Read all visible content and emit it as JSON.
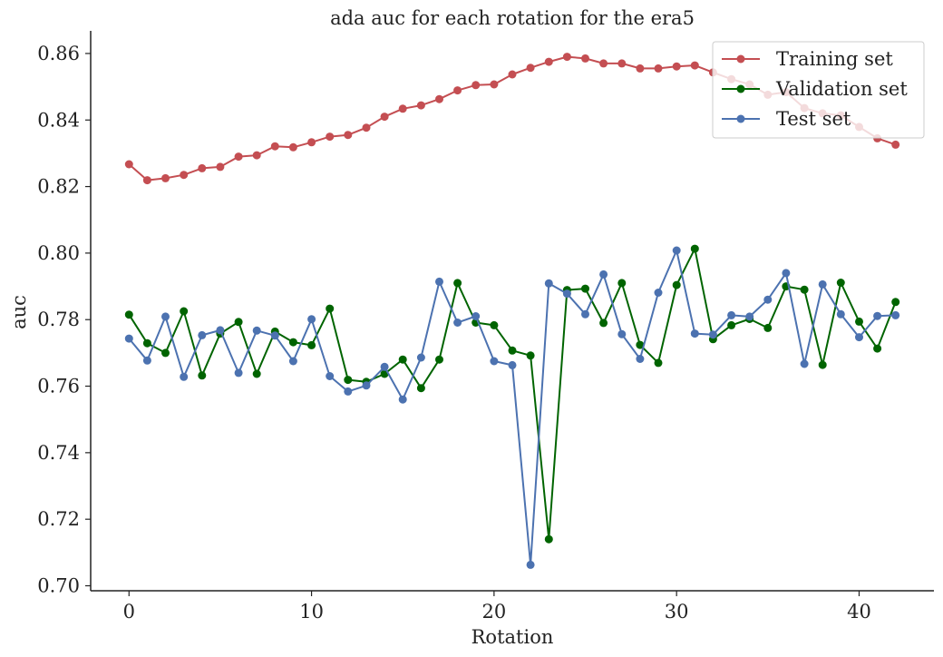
{
  "chart_data": {
    "type": "line",
    "title": "ada auc for each rotation for the era5",
    "xlabel": "Rotation",
    "ylabel": "auc",
    "xlim": [
      -2.1,
      44.1
    ],
    "ylim": [
      0.6985,
      0.8668
    ],
    "xticks": [
      0,
      10,
      20,
      30,
      40
    ],
    "xtick_labels": [
      "0",
      "10",
      "20",
      "30",
      "40"
    ],
    "yticks": [
      0.7,
      0.72,
      0.74,
      0.76,
      0.78,
      0.8,
      0.82,
      0.84,
      0.86
    ],
    "ytick_labels": [
      "0.70",
      "0.72",
      "0.74",
      "0.76",
      "0.78",
      "0.80",
      "0.82",
      "0.84",
      "0.86"
    ],
    "grid": false,
    "legend_position": "top-right",
    "x": [
      0,
      1,
      2,
      3,
      4,
      5,
      6,
      7,
      8,
      9,
      10,
      11,
      12,
      13,
      14,
      15,
      16,
      17,
      18,
      19,
      20,
      21,
      22,
      23,
      24,
      25,
      26,
      27,
      28,
      29,
      30,
      31,
      32,
      33,
      34,
      35,
      36,
      37,
      38,
      39,
      40,
      41,
      42
    ],
    "series": [
      {
        "name": "Training set",
        "color": "#c44e52",
        "values": [
          0.8267,
          0.8219,
          0.8225,
          0.8235,
          0.8255,
          0.8259,
          0.829,
          0.8294,
          0.8321,
          0.8318,
          0.8333,
          0.835,
          0.8355,
          0.8377,
          0.841,
          0.8434,
          0.8444,
          0.8463,
          0.8489,
          0.8505,
          0.8507,
          0.8537,
          0.8557,
          0.8575,
          0.859,
          0.8585,
          0.857,
          0.857,
          0.8555,
          0.8555,
          0.8561,
          0.8564,
          0.8543,
          0.8523,
          0.8507,
          0.8476,
          0.8484,
          0.8436,
          0.842,
          0.8414,
          0.8379,
          0.8345,
          0.8326
        ]
      },
      {
        "name": "Validation set",
        "color": "#006400",
        "values": [
          0.7815,
          0.7729,
          0.77,
          0.7825,
          0.7632,
          0.7758,
          0.7793,
          0.7637,
          0.7764,
          0.7732,
          0.7723,
          0.7833,
          0.7619,
          0.7613,
          0.7637,
          0.768,
          0.7594,
          0.768,
          0.791,
          0.7791,
          0.7783,
          0.7707,
          0.7692,
          0.714,
          0.7889,
          0.7893,
          0.779,
          0.791,
          0.7724,
          0.767,
          0.7904,
          0.8013,
          0.7741,
          0.7783,
          0.7802,
          0.7775,
          0.79,
          0.789,
          0.7664,
          0.7911,
          0.7794,
          0.7713,
          0.7853
        ]
      },
      {
        "name": "Test set",
        "color": "#4c72b0",
        "values": [
          0.7743,
          0.7677,
          0.7809,
          0.7628,
          0.7753,
          0.7768,
          0.764,
          0.7767,
          0.7752,
          0.7675,
          0.7801,
          0.763,
          0.7584,
          0.7602,
          0.7658,
          0.756,
          0.7686,
          0.7914,
          0.7791,
          0.781,
          0.7675,
          0.7663,
          0.7063,
          0.7909,
          0.7878,
          0.7816,
          0.7936,
          0.7756,
          0.7682,
          0.7881,
          0.8008,
          0.7758,
          0.7755,
          0.7813,
          0.7809,
          0.786,
          0.794,
          0.7667,
          0.7906,
          0.7816,
          0.7747,
          0.7811,
          0.7813
        ]
      }
    ]
  }
}
